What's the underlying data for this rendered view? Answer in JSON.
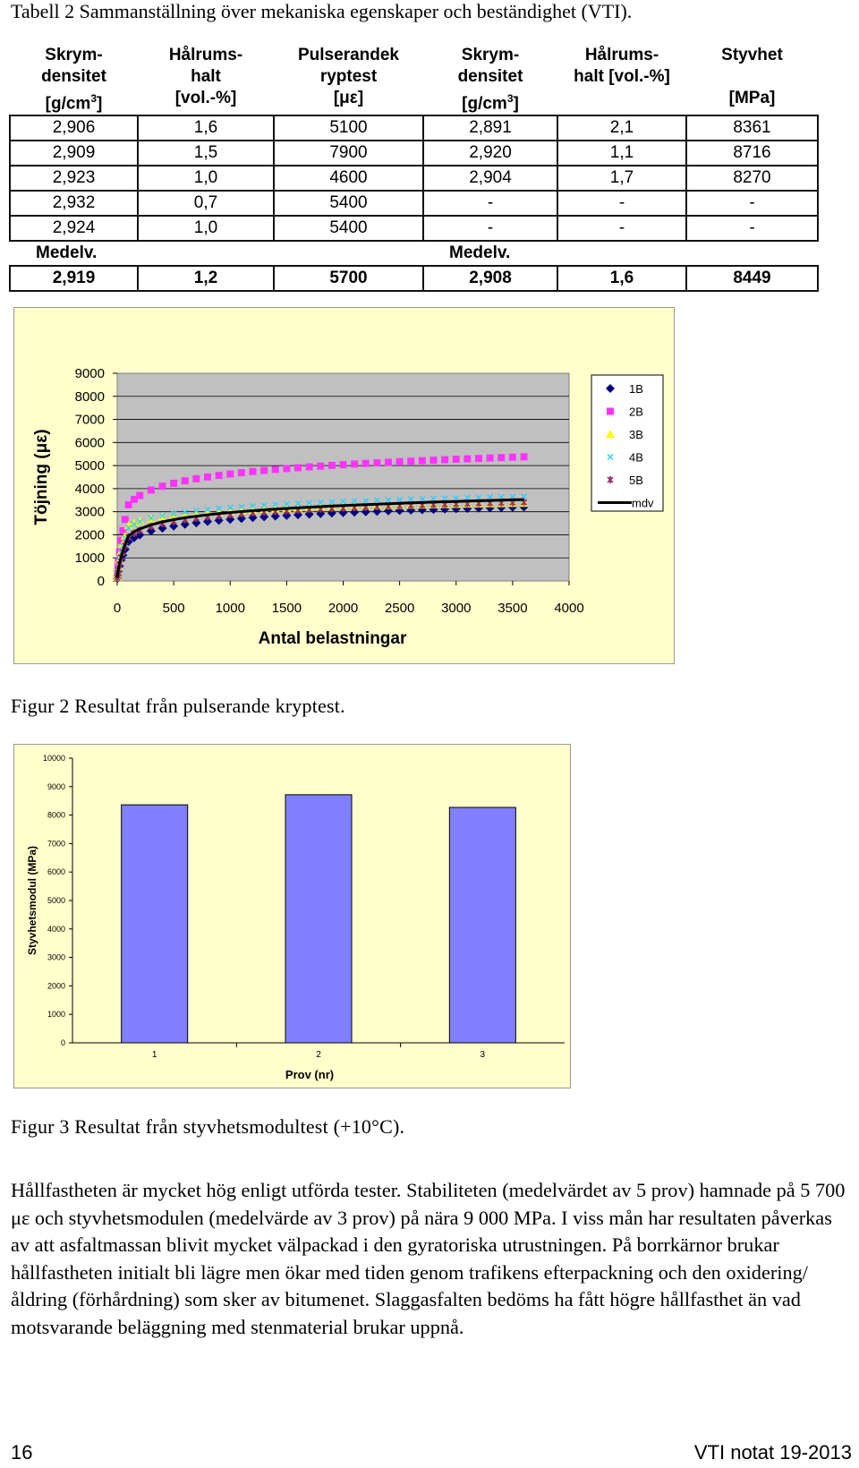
{
  "table": {
    "caption": "Tabell 2 Sammanställning över mekaniska egenskaper och beständighet (VTI).",
    "headers": [
      [
        "Skrym-",
        "densitet",
        "[g/cm³]"
      ],
      [
        "Hålrums-",
        "halt",
        "[vol.-%]"
      ],
      [
        "Pulserandek",
        "ryptest",
        "[με]"
      ],
      [
        "Skrym-",
        "densitet",
        "[g/cm³]"
      ],
      [
        "Hålrums-",
        "halt [vol.-%]",
        ""
      ],
      [
        "Styvhet",
        "",
        "[MPa]"
      ]
    ],
    "rows": [
      [
        "2,906",
        "1,6",
        "5100",
        "2,891",
        "2,1",
        "8361"
      ],
      [
        "2,909",
        "1,5",
        "7900",
        "2,920",
        "1,1",
        "8716"
      ],
      [
        "2,923",
        "1,0",
        "4600",
        "2,904",
        "1,7",
        "8270"
      ],
      [
        "2,932",
        "0,7",
        "5400",
        "-",
        "-",
        "-"
      ],
      [
        "2,924",
        "1,0",
        "5400",
        "-",
        "-",
        "-"
      ]
    ],
    "mean_label_left": "Medelv.",
    "mean_label_right": "Medelv.",
    "mean_row": [
      "2,919",
      "1,2",
      "5700",
      "2,908",
      "1,6",
      "8449"
    ]
  },
  "figure2": {
    "caption": "Figur 2 Resultat från pulserande kryptest."
  },
  "figure3": {
    "caption": "Figur 3 Resultat från styvhetsmodultest (+10°C)."
  },
  "chart_data": [
    {
      "type": "scatter",
      "xlabel": "Antal belastningar",
      "ylabel": "Töjning (με)",
      "xlim": [
        0,
        4000
      ],
      "ylim": [
        0,
        9000
      ],
      "xticks": [
        "0",
        "500",
        "1000",
        "1500",
        "2000",
        "2500",
        "3000",
        "3500",
        "4000"
      ],
      "yticks": [
        "0",
        "1000",
        "2000",
        "3000",
        "4000",
        "5000",
        "6000",
        "7000",
        "8000",
        "9000"
      ],
      "grid": true,
      "legend": "right",
      "series": [
        {
          "name": "1B",
          "marker": "diamond",
          "color": "#000080",
          "A": 1700,
          "B": 420
        },
        {
          "name": "2B",
          "marker": "square",
          "color": "#ff33ff",
          "A": 3300,
          "B": 580
        },
        {
          "name": "3B",
          "marker": "triangle",
          "color": "#ffff00",
          "A": 2400,
          "B": 270
        },
        {
          "name": "4B",
          "marker": "x",
          "color": "#33ccff",
          "A": 2300,
          "B": 380
        },
        {
          "name": "5B",
          "marker": "star",
          "color": "#993366",
          "A": 1900,
          "B": 420
        },
        {
          "name": "mdv",
          "marker": "line",
          "color": "#000000",
          "A": 1950,
          "B": 440
        }
      ]
    },
    {
      "type": "bar",
      "xlabel": "Prov (nr)",
      "ylabel": "Styvhetsmodul (MPa)",
      "ylim": [
        0,
        10000
      ],
      "yticks": [
        "0",
        "1000",
        "2000",
        "3000",
        "4000",
        "5000",
        "6000",
        "7000",
        "8000",
        "9000",
        "10000"
      ],
      "categories": [
        "1",
        "2",
        "3"
      ],
      "values": [
        8361,
        8716,
        8270
      ],
      "color": "#8080ff",
      "grid": false
    }
  ],
  "body": {
    "paragraph": "Hållfastheten är mycket hög enligt utförda tester. Stabiliteten (medelvärdet av 5 prov) hamnade på 5 700 με och styvhetsmodulen (medelvärde av 3 prov) på nära 9 000 MPa. I viss mån har resultaten påverkas av att asfaltmassan blivit mycket välpackad i den gyratoriska utrustningen. På borrkärnor brukar hållfastheten initialt bli lägre men ökar med tiden genom trafikens efterpackning och den oxidering/åldring (förhårdning) som sker av bitumenet. Slaggasfalten bedöms ha fått högre hållfasthet än vad motsvarande beläggning med stenmaterial brukar uppnå."
  },
  "footer": {
    "page_number": "16",
    "publication": "VTI notat 19-2013"
  }
}
